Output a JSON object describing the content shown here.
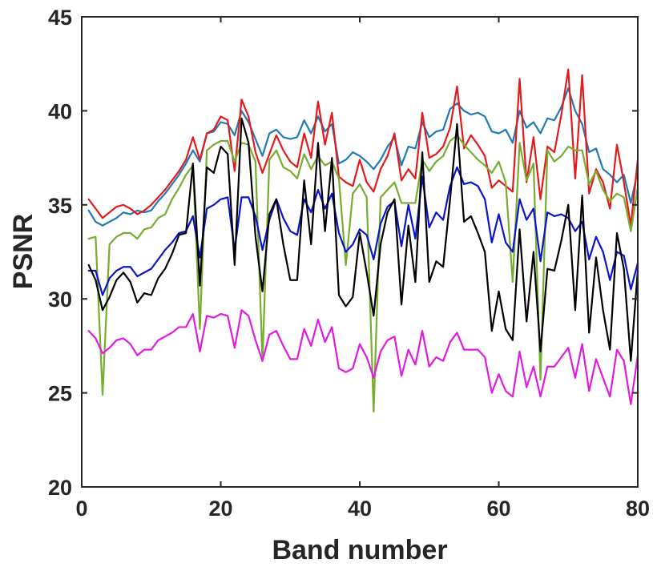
{
  "chart_data": {
    "type": "line",
    "title": "",
    "xlabel": "Band number",
    "ylabel": "PSNR",
    "xlim": [
      0,
      80
    ],
    "ylim": [
      20,
      45
    ],
    "xticks": [
      0,
      20,
      40,
      60,
      80
    ],
    "yticks": [
      20,
      25,
      30,
      35,
      40,
      45
    ],
    "xtick_labels": [
      "0",
      "20",
      "40",
      "60",
      "80"
    ],
    "ytick_labels": [
      "20",
      "25",
      "30",
      "35",
      "40",
      "45"
    ],
    "grid": false,
    "legend": "none",
    "x": [
      1,
      2,
      3,
      4,
      5,
      6,
      7,
      8,
      9,
      10,
      11,
      12,
      13,
      14,
      15,
      16,
      17,
      18,
      19,
      20,
      21,
      22,
      23,
      24,
      25,
      26,
      27,
      28,
      29,
      30,
      31,
      32,
      33,
      34,
      35,
      36,
      37,
      38,
      39,
      40,
      41,
      42,
      43,
      44,
      45,
      46,
      47,
      48,
      49,
      50,
      51,
      52,
      53,
      54,
      55,
      56,
      57,
      58,
      59,
      60,
      61,
      62,
      63,
      64,
      65,
      66,
      67,
      68,
      69,
      70,
      71,
      72,
      73,
      74,
      75,
      76,
      77,
      78,
      79,
      80
    ],
    "series": [
      {
        "color": "#1f7ab6",
        "values": [
          34.7,
          34.1,
          33.9,
          34.1,
          34.3,
          34.6,
          34.5,
          34.7,
          34.6,
          34.7,
          35.2,
          35.6,
          36.1,
          36.6,
          37.2,
          37.9,
          37.3,
          38.8,
          38.9,
          39.4,
          39.3,
          38.7,
          40.0,
          39.4,
          38.5,
          37.6,
          38.8,
          39.0,
          38.6,
          38.5,
          38.6,
          39.5,
          38.8,
          39.7,
          38.9,
          39.3,
          37.2,
          37.4,
          37.8,
          37.6,
          37.3,
          36.9,
          37.4,
          38.1,
          38.6,
          37.1,
          38.1,
          38.0,
          39.4,
          38.6,
          38.9,
          39.0,
          40.1,
          40.4,
          40.0,
          39.8,
          39.9,
          39.7,
          38.9,
          38.8,
          39.0,
          38.3,
          40.0,
          39.1,
          39.4,
          38.8,
          39.6,
          39.5,
          40.2,
          41.2,
          40.0,
          39.3,
          37.8,
          38.0,
          36.9,
          36.6,
          36.2,
          36.6,
          35.1,
          36.8
        ]
      },
      {
        "color": "#e31a1c",
        "values": [
          35.3,
          34.8,
          34.3,
          34.6,
          34.9,
          35.0,
          34.8,
          34.5,
          34.7,
          35.0,
          35.4,
          35.8,
          36.3,
          36.8,
          37.4,
          38.6,
          37.4,
          38.8,
          39.0,
          39.7,
          39.5,
          36.8,
          40.6,
          39.7,
          37.8,
          36.7,
          37.7,
          38.7,
          37.9,
          37.3,
          37.0,
          38.8,
          37.5,
          40.5,
          38.2,
          39.9,
          36.5,
          36.2,
          36.0,
          37.4,
          36.2,
          35.7,
          36.9,
          37.6,
          38.8,
          36.3,
          36.9,
          36.4,
          39.9,
          37.5,
          37.7,
          38.1,
          39.1,
          41.3,
          38.0,
          38.7,
          38.2,
          37.6,
          35.9,
          36.3,
          36.0,
          35.7,
          41.7,
          36.2,
          38.6,
          35.3,
          38.1,
          37.8,
          39.8,
          42.2,
          36.4,
          41.9,
          35.6,
          36.9,
          36.2,
          34.8,
          38.2,
          36.2,
          33.9,
          37.4
        ]
      },
      {
        "color": "#77ac30",
        "values": [
          33.2,
          33.3,
          24.9,
          32.9,
          33.3,
          33.5,
          33.5,
          33.2,
          33.7,
          33.8,
          34.3,
          34.5,
          35.3,
          35.9,
          36.6,
          37.1,
          28.4,
          37.9,
          38.2,
          38.4,
          38.4,
          37.3,
          38.3,
          38.2,
          37.3,
          26.7,
          37.4,
          37.9,
          37.0,
          36.8,
          36.4,
          37.7,
          36.9,
          37.6,
          37.1,
          37.3,
          36.4,
          31.8,
          35.6,
          36.1,
          35.4,
          24.0,
          35.4,
          35.8,
          36.2,
          35.1,
          35.1,
          35.1,
          37.4,
          36.8,
          37.3,
          37.6,
          38.4,
          38.7,
          38.2,
          37.8,
          37.4,
          37.1,
          36.7,
          37.3,
          36.2,
          30.9,
          38.3,
          36.3,
          37.2,
          25.7,
          37.9,
          37.3,
          37.6,
          38.1,
          37.9,
          37.9,
          36.1,
          36.8,
          35.8,
          35.2,
          35.6,
          35.4,
          33.6,
          35.9
        ]
      },
      {
        "color": "#0a14c8",
        "values": [
          31.5,
          31.5,
          30.2,
          31.1,
          31.5,
          31.7,
          31.7,
          31.2,
          31.4,
          31.6,
          32.1,
          32.6,
          33.0,
          33.5,
          33.6,
          34.4,
          32.2,
          34.8,
          35.0,
          35.3,
          35.4,
          32.6,
          35.4,
          35.4,
          34.4,
          32.6,
          34.2,
          35.3,
          34.3,
          33.6,
          33.4,
          35.3,
          34.6,
          35.8,
          34.8,
          35.6,
          33.5,
          32.5,
          32.9,
          33.7,
          33.4,
          32.1,
          34.0,
          34.9,
          35.2,
          32.8,
          35.0,
          33.2,
          36.5,
          33.8,
          34.6,
          34.2,
          36.0,
          37.0,
          36.1,
          36.2,
          36.0,
          35.3,
          33.0,
          34.5,
          33.0,
          32.5,
          35.3,
          34.2,
          34.8,
          32.0,
          34.6,
          34.4,
          34.5,
          34.3,
          33.6,
          34.1,
          32.1,
          33.3,
          32.5,
          31.0,
          32.5,
          32.3,
          30.5,
          31.9
        ]
      },
      {
        "color": "#000000",
        "values": [
          31.8,
          31.0,
          29.4,
          30.1,
          31.0,
          31.4,
          30.9,
          29.8,
          30.3,
          30.2,
          31.1,
          31.6,
          32.4,
          33.4,
          33.5,
          37.2,
          30.7,
          37.0,
          36.7,
          38.1,
          37.7,
          31.8,
          39.6,
          38.3,
          33.3,
          30.4,
          34.5,
          35.3,
          32.9,
          31.0,
          31.0,
          36.3,
          32.9,
          38.3,
          33.6,
          37.5,
          30.2,
          29.6,
          30.1,
          33.5,
          31.4,
          29.1,
          32.9,
          34.6,
          35.3,
          29.7,
          33.9,
          30.9,
          37.8,
          30.9,
          32.0,
          31.7,
          35.3,
          39.3,
          34.1,
          34.4,
          33.5,
          32.5,
          28.3,
          30.4,
          28.4,
          27.8,
          33.7,
          28.8,
          32.5,
          27.2,
          31.6,
          31.5,
          33.1,
          35.0,
          29.4,
          35.5,
          28.2,
          32.2,
          29.4,
          27.3,
          33.5,
          31.6,
          26.7,
          31.5
        ]
      },
      {
        "color": "#e11ae1",
        "values": [
          28.3,
          27.9,
          27.1,
          27.4,
          27.8,
          27.9,
          27.6,
          27.0,
          27.3,
          27.3,
          27.8,
          28.0,
          28.2,
          28.5,
          28.5,
          29.2,
          27.2,
          29.1,
          29.0,
          29.2,
          29.1,
          27.4,
          29.4,
          29.1,
          27.8,
          26.7,
          28.1,
          28.3,
          27.5,
          26.8,
          26.8,
          28.4,
          27.5,
          28.9,
          27.7,
          28.5,
          26.3,
          26.1,
          26.3,
          27.6,
          26.9,
          25.8,
          27.2,
          27.8,
          28.0,
          25.9,
          27.3,
          26.5,
          28.3,
          26.4,
          26.9,
          26.7,
          27.7,
          28.2,
          27.3,
          27.3,
          27.3,
          26.9,
          25.0,
          26.0,
          25.1,
          24.8,
          27.2,
          25.3,
          26.4,
          24.8,
          26.4,
          26.4,
          26.9,
          27.4,
          25.8,
          27.6,
          25.1,
          26.8,
          25.8,
          24.8,
          27.3,
          26.7,
          24.4,
          27.0
        ]
      }
    ]
  }
}
